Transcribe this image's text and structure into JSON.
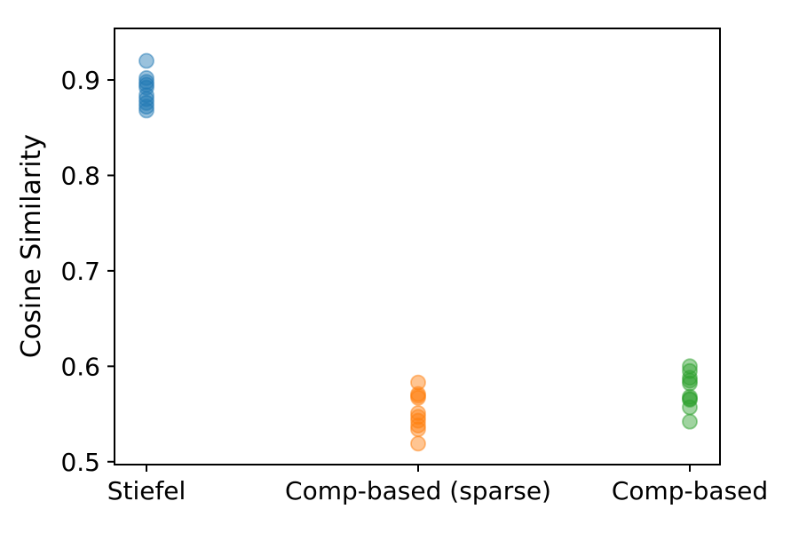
{
  "figure": {
    "background": "#ffffff",
    "spine_color": "#000000",
    "text_color": "#000000"
  },
  "chart_data": {
    "type": "scatter",
    "title": "",
    "xlabel": "",
    "ylabel": "Cosine Similarity",
    "categories": [
      "Stiefel",
      "Comp-based (sparse)",
      "Comp-based"
    ],
    "yticks": [
      0.5,
      0.6,
      0.7,
      0.8,
      0.9
    ],
    "ytick_labels": [
      "0.5",
      "0.6",
      "0.7",
      "0.8",
      "0.9"
    ],
    "ylim": [
      0.497,
      0.954
    ],
    "grid": false,
    "legend": null,
    "marker_alpha": 0.5,
    "marker_size_px": 8,
    "series": [
      {
        "name": "Stiefel",
        "color": "#1f77b4",
        "values": [
          0.92,
          0.902,
          0.898,
          0.895,
          0.892,
          0.884,
          0.88,
          0.876,
          0.872,
          0.868
        ]
      },
      {
        "name": "Comp-based (sparse)",
        "color": "#ff7f0e",
        "values": [
          0.583,
          0.571,
          0.569,
          0.567,
          0.551,
          0.547,
          0.543,
          0.538,
          0.534,
          0.519
        ]
      },
      {
        "name": "Comp-based",
        "color": "#2ca02c",
        "values": [
          0.6,
          0.595,
          0.588,
          0.585,
          0.582,
          0.568,
          0.566,
          0.565,
          0.557,
          0.542
        ]
      }
    ]
  }
}
